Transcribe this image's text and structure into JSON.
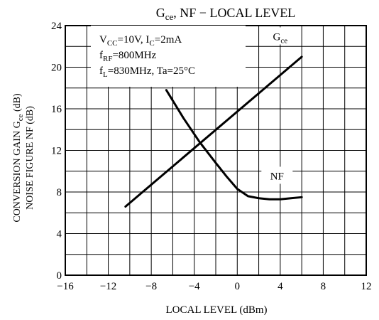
{
  "chart_data": {
    "type": "line",
    "title": {
      "part1": "G",
      "part1_sub": "ce",
      "part2": ", NF − LOCAL LEVEL"
    },
    "xlabel": "LOCAL LEVEL   (dBm)",
    "ylabel": {
      "line1_a": "CONVERSION GAIN  G",
      "line1_sub": "ce",
      "line1_b": "  (dB)",
      "line2": "NOISE FIGURE  NF  (dB)"
    },
    "xlim": [
      -16,
      12
    ],
    "ylim": [
      0,
      24
    ],
    "x_ticks": [
      "−16",
      "−12",
      "−8",
      "−4",
      "0",
      "4",
      "8",
      "12"
    ],
    "y_ticks": [
      "0",
      "4",
      "8",
      "12",
      "16",
      "20",
      "24"
    ],
    "grid": true,
    "conditions": [
      {
        "a": "V",
        "sub": "CC",
        "b": "=10V, I",
        "sub2": "C",
        "c": "=2mA"
      },
      {
        "a": "f",
        "sub": "RF",
        "b": "=800MHz",
        "sub2": "",
        "c": ""
      },
      {
        "a": "f",
        "sub": "L",
        "b": "=830MHz, Ta=25°C",
        "sub2": "",
        "c": ""
      }
    ],
    "series": [
      {
        "name": "Gce",
        "label_main": "G",
        "label_sub": "ce",
        "x": [
          -10.4,
          6
        ],
        "y": [
          6.6,
          21
        ]
      },
      {
        "name": "NF",
        "label_main": "NF",
        "label_sub": "",
        "x": [
          -6.6,
          -5,
          -3.5,
          -2,
          -1,
          0,
          1,
          2,
          3,
          4,
          5,
          6
        ],
        "y": [
          17.8,
          15.1,
          12.8,
          10.8,
          9.5,
          8.3,
          7.6,
          7.4,
          7.3,
          7.3,
          7.4,
          7.5
        ]
      }
    ]
  }
}
